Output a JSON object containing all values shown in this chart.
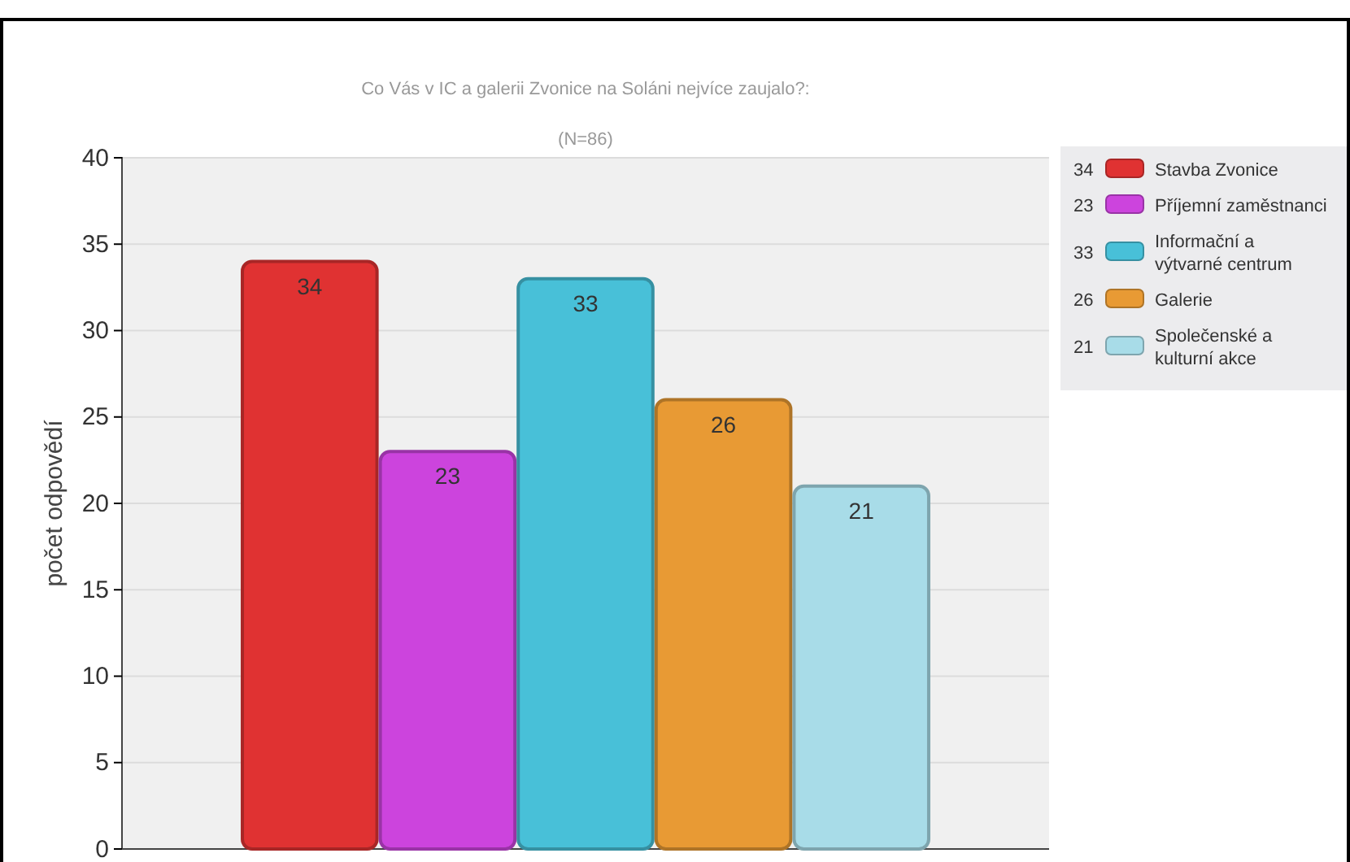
{
  "chart_data": {
    "type": "bar",
    "title": "Co Vás v IC a galerii Zvonice na Soláni nejvíce zaujalo?:",
    "subtitle": "(N=86)",
    "ylabel": "počet odpovědí",
    "categories": [
      null
    ],
    "series": [
      {
        "name": "Stavba Zvonice",
        "color": "#e03232",
        "values": [
          34
        ],
        "value_labels": [
          "34"
        ]
      },
      {
        "name": "Příjemní zaměstnanci",
        "color": "#cc44dd",
        "values": [
          23
        ],
        "value_labels": [
          "23"
        ]
      },
      {
        "name": "Informační a výtvarné centrum",
        "color": "#48c0d8",
        "values": [
          33
        ],
        "value_labels": [
          "33"
        ]
      },
      {
        "name": "Galerie",
        "color": "#e89a34",
        "values": [
          26
        ],
        "value_labels": [
          "26"
        ]
      },
      {
        "name": "Společenské a kulturní akce",
        "color": "#a8dce8",
        "values": [
          21
        ],
        "value_labels": [
          "21"
        ]
      }
    ],
    "ylim": [
      0,
      40
    ],
    "yticks": [
      0,
      5,
      10,
      15,
      20,
      25,
      30,
      35,
      40
    ],
    "grid": "y",
    "legend": "top right"
  }
}
